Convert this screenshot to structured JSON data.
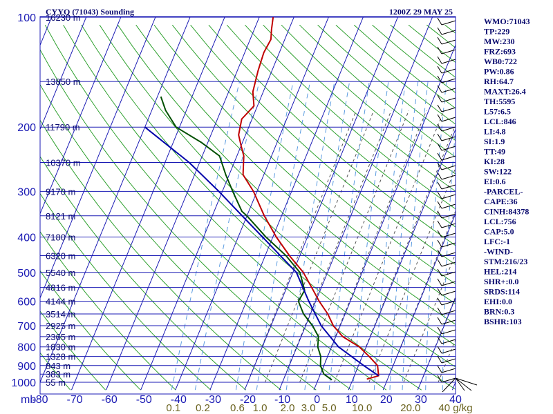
{
  "chart_data": {
    "type": "line",
    "title_left": "CYYQ (71043) Sounding",
    "title_right": "1200Z 29 MAY 25",
    "x_axis_unit": "mb",
    "y_axis_label": "",
    "xlim": [
      -80,
      40
    ],
    "pressure_levels": [
      100,
      200,
      300,
      400,
      500,
      600,
      700,
      800,
      900,
      1000
    ],
    "temperature_ticks": [
      "-80",
      "-70",
      "-60",
      "-50",
      "-40",
      "-30",
      "-20",
      "-10",
      "0",
      "10",
      "20",
      "30",
      "40"
    ],
    "height_labels": [
      {
        "p": 100,
        "label": "16230 m"
      },
      {
        "p": 150,
        "label": "13850 m"
      },
      {
        "p": 200,
        "label": "11790 m"
      },
      {
        "p": 250,
        "label": "10370 m"
      },
      {
        "p": 300,
        "label": "9170 m"
      },
      {
        "p": 350,
        "label": "8121 m"
      },
      {
        "p": 400,
        "label": "7180 m"
      },
      {
        "p": 450,
        "label": "6320 m"
      },
      {
        "p": 500,
        "label": "5540 m"
      },
      {
        "p": 550,
        "label": "4816 m"
      },
      {
        "p": 600,
        "label": "4144 m"
      },
      {
        "p": 650,
        "label": "3514 m"
      },
      {
        "p": 700,
        "label": "2925 m"
      },
      {
        "p": 750,
        "label": "2365 m"
      },
      {
        "p": 800,
        "label": "1830 m"
      },
      {
        "p": 850,
        "label": "1328 m"
      },
      {
        "p": 900,
        "label": "843 m"
      },
      {
        "p": 950,
        "label": "383 m"
      },
      {
        "p": 1000,
        "label": "55 m"
      }
    ],
    "mixing_ratio_labels": [
      "0.1",
      "0.2",
      "0.6",
      "1.0",
      "2.0",
      "3.0",
      "5.0",
      "10.0",
      "20.0",
      "40 g/kg"
    ],
    "mixing_ratio_label_positions": [
      -41.5,
      -33,
      -23,
      -16.5,
      -8.5,
      -2.5,
      3.5,
      13,
      27,
      40
    ],
    "series": [
      {
        "name": "",
        "color": "#c00000",
        "points": [
          {
            "p": 980,
            "t": 14.0
          },
          {
            "p": 960,
            "t": 17.0
          },
          {
            "p": 900,
            "t": 15.5
          },
          {
            "p": 850,
            "t": 12.0
          },
          {
            "p": 800,
            "t": 8.0
          },
          {
            "p": 750,
            "t": 2.0
          },
          {
            "p": 700,
            "t": -2.0
          },
          {
            "p": 650,
            "t": -5.0
          },
          {
            "p": 600,
            "t": -9.0
          },
          {
            "p": 560,
            "t": -12.0
          },
          {
            "p": 500,
            "t": -17.0
          },
          {
            "p": 450,
            "t": -23.0
          },
          {
            "p": 400,
            "t": -29.0
          },
          {
            "p": 350,
            "t": -35.0
          },
          {
            "p": 300,
            "t": -41.0
          },
          {
            "p": 270,
            "t": -46.0
          },
          {
            "p": 240,
            "t": -48.0
          },
          {
            "p": 225,
            "t": -50.0
          },
          {
            "p": 210,
            "t": -52.0
          },
          {
            "p": 190,
            "t": -53.0
          },
          {
            "p": 175,
            "t": -51.0
          },
          {
            "p": 160,
            "t": -53.0
          },
          {
            "p": 140,
            "t": -54.0
          },
          {
            "p": 125,
            "t": -54.5
          },
          {
            "p": 115,
            "t": -54.0
          },
          {
            "p": 108,
            "t": -55.0
          },
          {
            "p": 100,
            "t": -56.0
          }
        ]
      },
      {
        "name": "",
        "color": "#005000",
        "points": [
          {
            "p": 985,
            "t": 4.0
          },
          {
            "p": 950,
            "t": 1.0
          },
          {
            "p": 900,
            "t": -1.0
          },
          {
            "p": 850,
            "t": -2.0
          },
          {
            "p": 800,
            "t": -4.0
          },
          {
            "p": 750,
            "t": -5.0
          },
          {
            "p": 700,
            "t": -8.0
          },
          {
            "p": 650,
            "t": -12.0
          },
          {
            "p": 600,
            "t": -15.0
          },
          {
            "p": 560,
            "t": -14.5
          },
          {
            "p": 500,
            "t": -18.0
          },
          {
            "p": 450,
            "t": -24.0
          },
          {
            "p": 400,
            "t": -32.0
          },
          {
            "p": 350,
            "t": -40.0
          },
          {
            "p": 340,
            "t": -42.0
          },
          {
            "p": 300,
            "t": -47.0
          },
          {
            "p": 270,
            "t": -51.0
          },
          {
            "p": 240,
            "t": -55.0
          },
          {
            "p": 220,
            "t": -62.0
          },
          {
            "p": 200,
            "t": -71.0
          },
          {
            "p": 180,
            "t": -76.0
          },
          {
            "p": 165,
            "t": -79.0
          }
        ]
      },
      {
        "name": "",
        "color": "#0000aa",
        "points": [
          {
            "p": 960,
            "t": 17.0
          },
          {
            "p": 900,
            "t": 11.5
          },
          {
            "p": 800,
            "t": 2.0
          },
          {
            "p": 700,
            "t": -5.5
          },
          {
            "p": 600,
            "t": -12.0
          },
          {
            "p": 500,
            "t": -19.0
          },
          {
            "p": 400,
            "t": -33.0
          },
          {
            "p": 300,
            "t": -51.0
          },
          {
            "p": 250,
            "t": -63.0
          },
          {
            "p": 200,
            "t": -80.0
          }
        ]
      }
    ],
    "wind_profile_shown": true,
    "grid": true
  },
  "indices": [
    "WMO:71043",
    "TP:229",
    "MW:230",
    "FRZ:693",
    "WB0:722",
    "PW:0.86",
    "RH:64.7",
    "MAXT:26.4",
    "TH:5595",
    "L57:6.5",
    "LCL:846",
    "LI:4.8",
    "SI:1.9",
    "TT:49",
    "KI:28",
    "SW:122",
    "EI:0.6",
    "-PARCEL-",
    "CAPE:36",
    "CINH:84378",
    "LCL:756",
    "CAP:5.0",
    "LFC:-1",
    "-WIND-",
    "STM:216/23",
    "HEL:214",
    "SHR+:0.0",
    "SRDS:114",
    "EHI:0.0",
    "BRN:0.3",
    "BSHR:103"
  ],
  "colors": {
    "isobar": "#1a1ab4",
    "isotherm": "#1a1ab4",
    "dry_adiabat": "#2ea02e",
    "moist_adiabat": "#555555",
    "mixing_ratio": "#5a9be0",
    "temperature": "#c00000",
    "dewpoint": "#005000",
    "parcel": "#0000aa",
    "text": "#0a0a6e"
  }
}
